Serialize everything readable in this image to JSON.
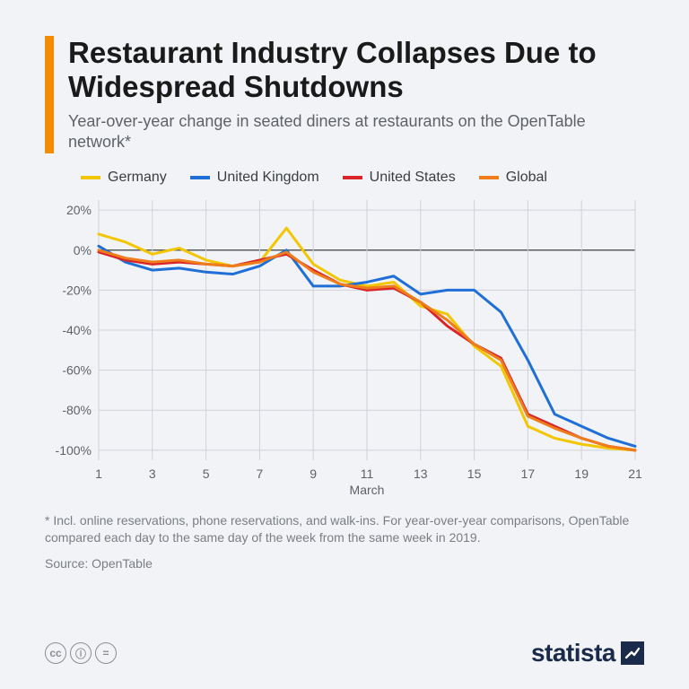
{
  "title": "Restaurant Industry Collapses Due to Widespread Shutdowns",
  "subtitle": "Year-over-year change in seated diners at restaurants on the OpenTable network*",
  "footnote": "* Incl. online reservations, phone reservations, and walk-ins. For year-over-year comparisons, OpenTable compared each day to the same day of the week from the same week in 2019.",
  "source_label": "Source: OpenTable",
  "brand": "statista",
  "accent_color": "#f28c00",
  "background_color": "#f2f3f7",
  "chart": {
    "type": "line",
    "x_label": "March",
    "x_values": [
      1,
      2,
      3,
      4,
      5,
      6,
      7,
      8,
      9,
      10,
      11,
      12,
      13,
      14,
      15,
      16,
      17,
      18,
      19,
      20,
      21
    ],
    "x_ticks": [
      1,
      3,
      5,
      7,
      9,
      11,
      13,
      15,
      17,
      19,
      21
    ],
    "y_ticks": [
      20,
      0,
      -20,
      -40,
      -60,
      -80,
      -100
    ],
    "y_tick_labels": [
      "20%",
      "0%",
      "-20%",
      "-40%",
      "-60%",
      "-80%",
      "-100%"
    ],
    "ylim": [
      -105,
      25
    ],
    "xlim": [
      1,
      21
    ],
    "zero_line_color": "#4a4d50",
    "grid_color": "#cfd2d8",
    "axis_font_size": 14,
    "axis_color": "#5e6266",
    "line_width": 3,
    "series": [
      {
        "name": "Germany",
        "color": "#f2c600",
        "values": [
          8,
          4,
          -2,
          1,
          -5,
          -8,
          -6,
          11,
          -7,
          -15,
          -18,
          -16,
          -28,
          -32,
          -48,
          -58,
          -88,
          -94,
          -97,
          -99,
          -100
        ]
      },
      {
        "name": "United Kingdom",
        "color": "#1f6fd6",
        "values": [
          2,
          -6,
          -10,
          -9,
          -11,
          -12,
          -8,
          0,
          -18,
          -18,
          -16,
          -13,
          -22,
          -20,
          -20,
          -31,
          -55,
          -82,
          -88,
          -94,
          -98
        ]
      },
      {
        "name": "United States",
        "color": "#d9252a",
        "values": [
          -1,
          -5,
          -7,
          -6,
          -7,
          -8,
          -5,
          -2,
          -10,
          -17,
          -20,
          -19,
          -26,
          -38,
          -47,
          -54,
          -82,
          -88,
          -94,
          -98,
          -100
        ]
      },
      {
        "name": "Global",
        "color": "#ee7d1a",
        "values": [
          0,
          -4,
          -6,
          -5,
          -7,
          -8,
          -6,
          -1,
          -11,
          -17,
          -19,
          -18,
          -26,
          -35,
          -47,
          -55,
          -83,
          -89,
          -94,
          -98,
          -100
        ]
      }
    ],
    "legend": [
      {
        "label": "Germany",
        "color": "#f2c600"
      },
      {
        "label": "United Kingdom",
        "color": "#1f6fd6"
      },
      {
        "label": "United States",
        "color": "#d9252a"
      },
      {
        "label": "Global",
        "color": "#ee7d1a"
      }
    ]
  },
  "cc_icons": [
    "cc",
    "by",
    "nd"
  ]
}
